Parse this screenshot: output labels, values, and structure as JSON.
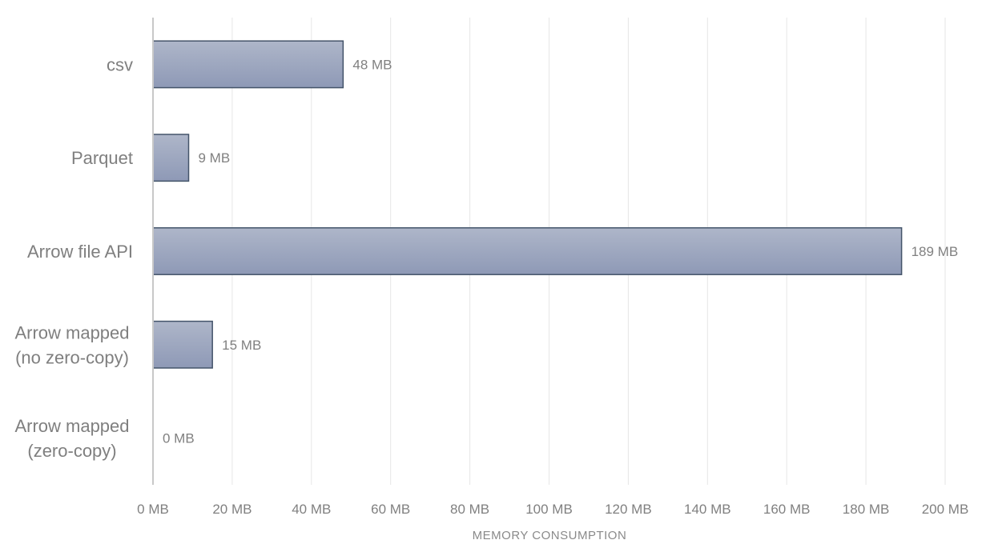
{
  "chart_data": {
    "type": "bar",
    "orientation": "horizontal",
    "categories": [
      [
        "csv"
      ],
      [
        "Parquet"
      ],
      [
        "Arrow file API"
      ],
      [
        "Arrow mapped",
        "(no zero-copy)"
      ],
      [
        "Arrow mapped",
        "(zero-copy)"
      ]
    ],
    "values": [
      48,
      9,
      189,
      15,
      0
    ],
    "data_labels": [
      "48 MB",
      "9 MB",
      "189 MB",
      "15 MB",
      "0 MB"
    ],
    "xlim": [
      0,
      200
    ],
    "xticks": [
      0,
      20,
      40,
      60,
      80,
      100,
      120,
      140,
      160,
      180,
      200
    ],
    "xtick_labels": [
      "0 MB",
      "20 MB",
      "40 MB",
      "60 MB",
      "80 MB",
      "100 MB",
      "120 MB",
      "140 MB",
      "160 MB",
      "180 MB",
      "200 MB"
    ],
    "xlabel": "MEMORY CONSUMPTION",
    "ylabel": "",
    "title": "",
    "grid": true,
    "legend": "none",
    "colors": {
      "bar_top": "#aeb6c9",
      "bar_bottom": "#8e99b6",
      "bar_border": "#44546a"
    }
  }
}
